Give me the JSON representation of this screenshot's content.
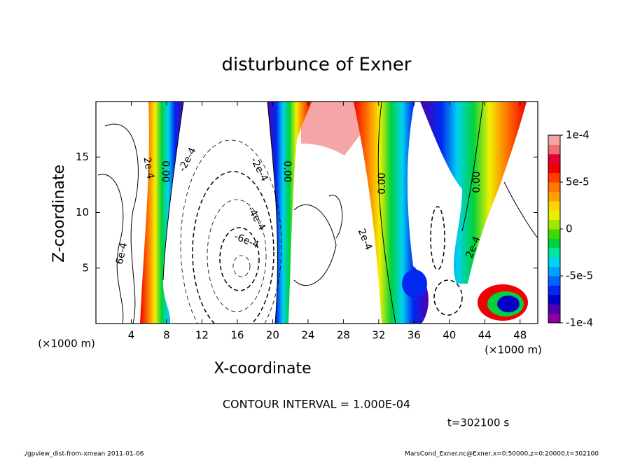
{
  "chart_data": {
    "type": "contour",
    "title": "disturbunce of Exner",
    "x_label": "X-coordinate",
    "y_label": "Z-coordinate",
    "x_unit_label": "(×1000 m)",
    "y_unit_label": "(×1000 m)",
    "xlim": [
      0,
      50
    ],
    "xticks": [
      4,
      8,
      12,
      16,
      20,
      24,
      28,
      32,
      36,
      40,
      44,
      48
    ],
    "ylim": [
      0,
      20
    ],
    "yticks": [
      5,
      10,
      15
    ],
    "colorbar": {
      "lim": [
        -0.0001,
        0.0001
      ],
      "ticks": [
        {
          "value": 0.0001,
          "label": "1e-4"
        },
        {
          "value": 5e-05,
          "label": "5e-5"
        },
        0,
        {
          "value": -5e-05,
          "label": "-5e-5"
        },
        {
          "value": -0.0001,
          "label": "-1e-4"
        }
      ],
      "colors": [
        "#8c00a0",
        "#5000b0",
        "#0000c8",
        "#0028f0",
        "#0064ff",
        "#00a0ff",
        "#00d2f0",
        "#00e6a0",
        "#00d23c",
        "#3cdc00",
        "#a0e600",
        "#e6f000",
        "#ffd200",
        "#ffa000",
        "#ff7800",
        "#ff3c00",
        "#f00000",
        "#e60032",
        "#f06e6e",
        "#f5a5a5"
      ]
    },
    "contour_labels": [
      "2e-4",
      "0.00",
      "-2e-4",
      "6e-4",
      "-2e-4",
      "-4e-4",
      "-6e-4",
      "0.00",
      "2e-4",
      "0.00",
      "0.00",
      "2e-4"
    ],
    "contour_interval_label": "CONTOUR INTERVAL = 1.000E-04",
    "time_label": "t=302100 s",
    "footer_left": "./gpview_dist-from-xmean  2011-01-06",
    "footer_right": "MarsCond_Exner.nc@Exner,x=0:50000,z=0:20000,t=302100"
  }
}
